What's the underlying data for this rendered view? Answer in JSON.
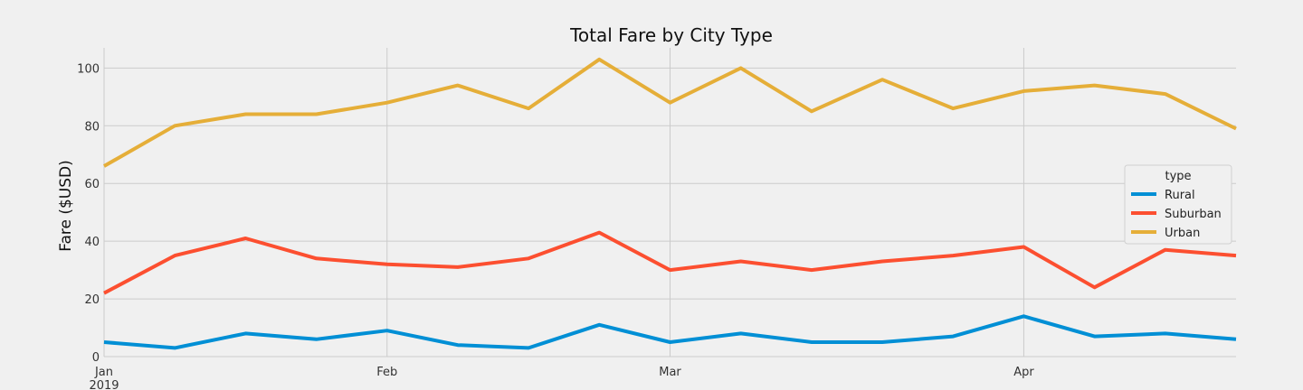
{
  "chart_data": {
    "type": "line",
    "title": "Total Fare by City Type",
    "xlabel": "",
    "ylabel": "Fare ($USD)",
    "ylim": [
      0,
      107
    ],
    "yticks": [
      0,
      20,
      40,
      60,
      80,
      100
    ],
    "x": [
      "2019-01-06",
      "2019-01-13",
      "2019-01-20",
      "2019-01-27",
      "2019-02-03",
      "2019-02-10",
      "2019-02-17",
      "2019-02-24",
      "2019-03-03",
      "2019-03-10",
      "2019-03-17",
      "2019-03-24",
      "2019-03-31",
      "2019-04-07",
      "2019-04-14",
      "2019-04-21",
      "2019-04-28"
    ],
    "xlim": [
      "2019-01-06",
      "2019-04-28"
    ],
    "xticks": [
      {
        "date": "2019-01-06",
        "label": "Jan",
        "sublabel": "2019"
      },
      {
        "date": "2019-02-03",
        "label": "Feb",
        "sublabel": ""
      },
      {
        "date": "2019-03-03",
        "label": "Mar",
        "sublabel": ""
      },
      {
        "date": "2019-04-07",
        "label": "Apr",
        "sublabel": ""
      }
    ],
    "grid": true,
    "legend": {
      "title": "type",
      "position": "center-right"
    },
    "series": [
      {
        "name": "Rural",
        "color": "#008fd5",
        "values": [
          5,
          3,
          8,
          6,
          9,
          4,
          3,
          11,
          5,
          8,
          5,
          5,
          7,
          14,
          7,
          8,
          6
        ]
      },
      {
        "name": "Suburban",
        "color": "#fc4f30",
        "values": [
          22,
          35,
          41,
          34,
          32,
          31,
          34,
          43,
          30,
          33,
          30,
          33,
          35,
          38,
          24,
          37,
          35
        ]
      },
      {
        "name": "Urban",
        "color": "#e5ae38",
        "values": [
          66,
          80,
          84,
          84,
          88,
          94,
          86,
          103,
          88,
          100,
          85,
          96,
          86,
          92,
          94,
          91,
          79
        ]
      }
    ]
  }
}
